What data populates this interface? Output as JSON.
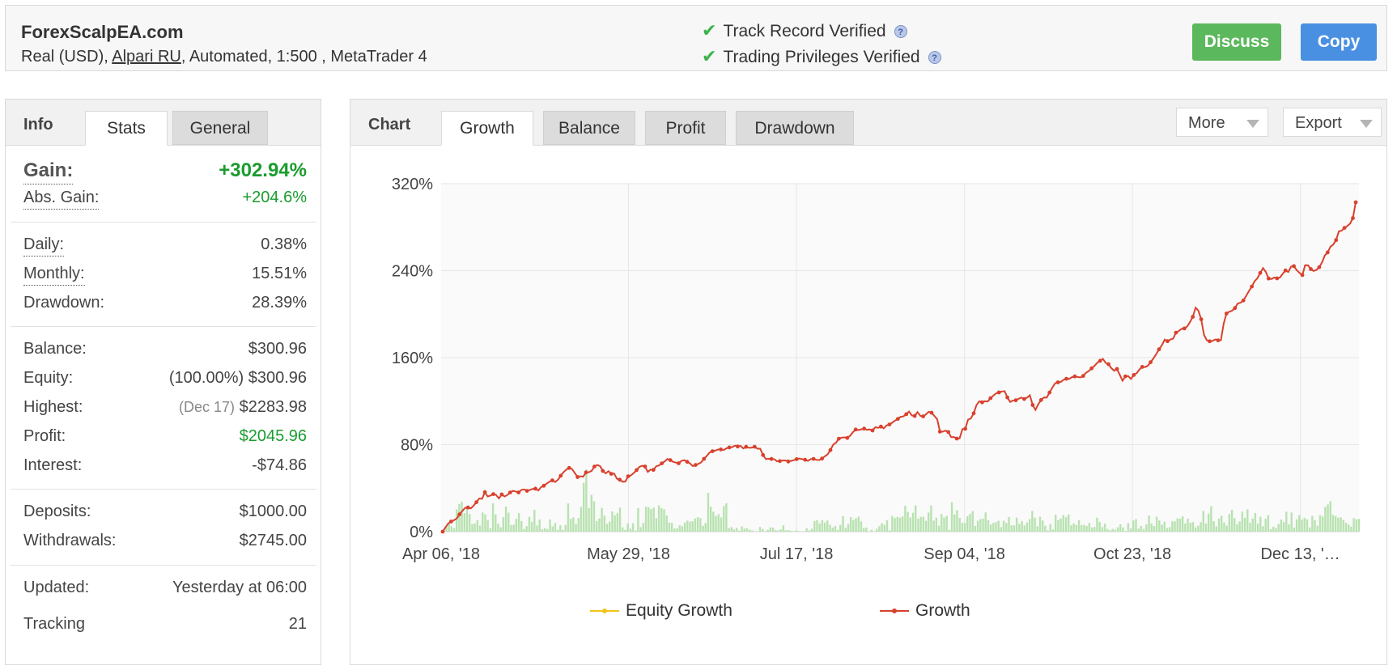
{
  "header": {
    "site_name": "ForexScalpEA.com",
    "account_prefix": "Real (USD), ",
    "broker": "Alpari RU",
    "account_suffix": ", Automated, 1:500 , MetaTrader 4",
    "track_record": "Track Record Verified",
    "trading_privileges": "Trading Privileges Verified",
    "discuss_label": "Discuss",
    "copy_label": "Copy",
    "check_icon": "✔",
    "help_icon": "?"
  },
  "info": {
    "title": "Info",
    "tabs": [
      "Stats",
      "General"
    ],
    "gain_label": "Gain:",
    "gain_value": "+302.94%",
    "abs_gain_label": "Abs. Gain:",
    "abs_gain_value": "+204.6%",
    "daily_label": "Daily:",
    "daily_value": "0.38%",
    "monthly_label": "Monthly:",
    "monthly_value": "15.51%",
    "drawdown_label": "Drawdown:",
    "drawdown_value": "28.39%",
    "balance_label": "Balance:",
    "balance_value": "$300.96",
    "equity_label": "Equity:",
    "equity_note": "(100.00%)",
    "equity_value": "$300.96",
    "highest_label": "Highest:",
    "highest_note": "(Dec 17)",
    "highest_value": "$2283.98",
    "profit_label": "Profit:",
    "profit_value": "$2045.96",
    "interest_label": "Interest:",
    "interest_value": "-$74.86",
    "deposits_label": "Deposits:",
    "deposits_value": "$1000.00",
    "withdrawals_label": "Withdrawals:",
    "withdrawals_value": "$2745.00",
    "updated_label": "Updated:",
    "updated_value": "Yesterday at 06:00",
    "tracking_label": "Tracking",
    "tracking_value": "21"
  },
  "chart_panel": {
    "title": "Chart",
    "tabs": [
      "Growth",
      "Balance",
      "Profit",
      "Drawdown"
    ],
    "more_label": "More",
    "export_label": "Export"
  },
  "colors": {
    "growth": "#d9412e",
    "equity": "#f0c419",
    "volume": "#b8e2b0",
    "gain_green": "#1a9c2e",
    "discuss": "#5cb85c",
    "copy": "#4a90e2"
  },
  "chart_data": {
    "type": "line",
    "x_tick_labels": [
      "Apr 06, '18",
      "May 29, '18",
      "Jul 17, '18",
      "Sep 04, '18",
      "Oct 23, '18",
      "Dec 13, '…"
    ],
    "y_tick_labels": [
      "0%",
      "80%",
      "160%",
      "240%",
      "320%"
    ],
    "ylim": [
      0,
      320
    ],
    "grid": true,
    "legend_position": "bottom",
    "series": [
      {
        "name": "Equity Growth",
        "values": []
      },
      {
        "name": "Growth",
        "values": [
          0.0,
          4.1,
          7.6,
          9.3,
          10.5,
          12.1,
          15.9,
          19.1,
          21.9,
          22.2,
          21.4,
          24.0,
          27.1,
          30.5,
          30.2,
          36.3,
          32.3,
          33.2,
          34.5,
          33.7,
          30.6,
          34.2,
          32.3,
          33.7,
          36.0,
          37.5,
          36.9,
          36.0,
          38.4,
          38.8,
          37.5,
          38.3,
          39.3,
          39.5,
          37.8,
          40.9,
          42.2,
          44.1,
          45.9,
          47.2,
          45.6,
          47.7,
          51.4,
          54.7,
          57.1,
          58.6,
          57.6,
          54.0,
          50.2,
          50.9,
          50.6,
          54.5,
          54.6,
          56.0,
          59.8,
          61.3,
          60.2,
          55.9,
          53.6,
          55.6,
          53.1,
          53.4,
          48.7,
          47.8,
          45.9,
          46.1,
          50.9,
          51.7,
          53.9,
          56.6,
          59.5,
          60.6,
          59.9,
          54.9,
          57.0,
          56.8,
          60.1,
          60.9,
          62.8,
          64.6,
          66.8,
          65.8,
          64.2,
          63.5,
          62.9,
          65.1,
          65.7,
          64.2,
          62.8,
          60.3,
          61.3,
          62.3,
          63.7,
          67.0,
          69.7,
          72.8,
          74.0,
          74.5,
          75.5,
          75.6,
          75.1,
          76.6,
          77.5,
          77.7,
          79.1,
          78.3,
          78.9,
          76.6,
          78.0,
          77.1,
          77.2,
          78.1,
          76.3,
          76.3,
          70.5,
          66.8,
          67.0,
          66.8,
          66.6,
          64.7,
          64.9,
          65.4,
          65.5,
          64.5,
          65.1,
          65.7,
          66.7,
          67.2,
          66.6,
          66.1,
          65.1,
          66.7,
          66.9,
          66.0,
          65.8,
          67.2,
          69.2,
          71.0,
          75.0,
          80.0,
          81.8,
          85.5,
          86.4,
          86.7,
          86.2,
          88.2,
          91.4,
          93.9,
          93.4,
          94.1,
          94.7,
          93.7,
          94.0,
          93.0,
          96.0,
          95.5,
          96.6,
          95.0,
          97.7,
          98.5,
          100.2,
          102.1,
          103.7,
          105.6,
          106.0,
          108.0,
          110.4,
          106.8,
          106.4,
          109.9,
          106.6,
          106.0,
          107.8,
          110.2,
          109.4,
          106.4,
          103.4,
          92.0,
          91.9,
          92.9,
          91.6,
          86.9,
          87.0,
          85.6,
          85.8,
          94.3,
          94.6,
          102.9,
          104.1,
          108.8,
          116.3,
          119.9,
          118.9,
          120.0,
          119.7,
          122.7,
          125.1,
          127.2,
          128.0,
          128.9,
          129.2,
          123.4,
          119.2,
          120.6,
          120.8,
          122.2,
          123.3,
          122.0,
          123.2,
          125.4,
          116.5,
          112.0,
          117.2,
          121.1,
          123.4,
          123.2,
          127.9,
          132.5,
          136.4,
          137.3,
          137.7,
          139.6,
          140.6,
          140.5,
          142.1,
          142.7,
          142.2,
          141.8,
          143.2,
          146.1,
          147.7,
          150.2,
          152.3,
          155.3,
          157.1,
          158.9,
          155.2,
          154.0,
          150.4,
          148.0,
          149.6,
          144.2,
          138.8,
          142.8,
          143.0,
          140.4,
          144.1,
          145.7,
          149.1,
          151.5,
          151.3,
          152.6,
          155.8,
          159.3,
          163.4,
          167.7,
          171.4,
          176.6,
          175.1,
          176.6,
          177.5,
          183.0,
          184.5,
          186.4,
          186.9,
          188.7,
          192.7,
          197.6,
          205.9,
          203.2,
          195.3,
          180.8,
          176.1,
          175.0,
          175.4,
          176.7,
          175.9,
          176.0,
          191.4,
          200.6,
          202.2,
          203.2,
          205.6,
          209.8,
          210.5,
          212.6,
          216.7,
          221.3,
          225.4,
          230.3,
          233.0,
          237.9,
          242.4,
          238.9,
          232.8,
          232.3,
          233.7,
          232.9,
          233.7,
          237.1,
          240.2,
          238.8,
          243.8,
          244.2,
          240.5,
          237.9,
          236.0,
          245.0,
          244.9,
          241.5,
          239.7,
          240.7,
          243.2,
          247.6,
          254.0,
          256.8,
          262.1,
          264.0,
          268.1,
          276.2,
          276.8,
          279.4,
          281.1,
          283.4,
          288.4,
          302.9
        ]
      }
    ],
    "volume_values": [
      0.0,
      2.0,
      4.5,
      8.4,
      5.0,
      3.2,
      20.4,
      25.4,
      27.4,
      17.1,
      22.0,
      16.2,
      7.0,
      7.5,
      10.6,
      5.5,
      17.6,
      15.9,
      10.7,
      3.1,
      26.1,
      15.9,
      7.2,
      4.0,
      13.3,
      23.1,
      17.4,
      6.1,
      6.4,
      11.7,
      17.0,
      9.7,
      2.5,
      5.0,
      13.5,
      9.1,
      20.0,
      5.6,
      11.2,
      2.2,
      3.2,
      2.4,
      11.2,
      4.7,
      7.9,
      1.8,
      5.8,
      1.6,
      6.2,
      25.9,
      11.8,
      13.1,
      7.1,
      12.6,
      22.8,
      44.8,
      57.3,
      21.7,
      33.8,
      28.0,
      9.6,
      12.2,
      21.8,
      14.7,
      7.2,
      9.2,
      18.6,
      14.9,
      16.9,
      22.0,
      3.9,
      1.7,
      7.5,
      2.8,
      7.7,
      1.1,
      21.7,
      4.2,
      8.0,
      22.9,
      22.5,
      20.7,
      22.2,
      12.3,
      24.1,
      21.5,
      20.6,
      14.9,
      8.3,
      8.1,
      2.9,
      3.1,
      5.9,
      4.9,
      8.3,
      10.1,
      9.2,
      9.6,
      12.1,
      13.3,
      12.4,
      5.4,
      8.0,
      35.7,
      23.0,
      18.4,
      14.4,
      16.0,
      13.1,
      23.4,
      26.0,
      3.2,
      4.2,
      2.1,
      3.4,
      1.0,
      4.9,
      2.8,
      3.2,
      1.9,
      1.1,
      0.0,
      0.0,
      4.3,
      2.4,
      0.4,
      1.8,
      3.9,
      3.7,
      1.4,
      1.2,
      2.1,
      5.8,
      1.3,
      1.5,
      0.7,
      0.3,
      1.2,
      0.5,
      0.2,
      0.0,
      3.0,
      1.2,
      2.7,
      9.6,
      10.6,
      7.4,
      10.4,
      8.4,
      10.2,
      6.4,
      3.7,
      5.3,
      1.6,
      6.3,
      14.3,
      3.3,
      6.9,
      13.4,
      10.8,
      12.2,
      13.8,
      9.4,
      3.2,
      3.8,
      0.3,
      1.7,
      0.0,
      2.6,
      5.0,
      7.8,
      6.3,
      10.4,
      1.2,
      14.4,
      12.6,
      13.6,
      12.9,
      14.0,
      23.8,
      18.2,
      13.0,
      17.3,
      24.1,
      11.8,
      13.6,
      13.7,
      10.0,
      17.6,
      24.0,
      10.1,
      12.9,
      5.5,
      16.1,
      13.0,
      14.6,
      1.7,
      27.1,
      15.8,
      19.7,
      12.7,
      8.0,
      7.9,
      14.1,
      16.3,
      18.8,
      5.3,
      10.0,
      11.6,
      12.0,
      17.7,
      10.5,
      6.6,
      8.0,
      8.7,
      10.0,
      4.2,
      10.0,
      7.9,
      13.4,
      5.8,
      5.8,
      12.9,
      7.1,
      9.7,
      5.7,
      8.4,
      11.5,
      19.0,
      12.8,
      4.9,
      13.8,
      10.3,
      5.4,
      1.2,
      6.9,
      2.0,
      15.5,
      10.6,
      12.1,
      15.2,
      13.3,
      15.8,
      5.9,
      7.5,
      6.1,
      10.4,
      6.0,
      6.2,
      5.1,
      7.9,
      3.8,
      4.3,
      12.9,
      9.0,
      4.2,
      7.3,
      2.5,
      1.3,
      2.5,
      2.0,
      4.0,
      6.7,
      3.8,
      0.7,
      7.9,
      2.9,
      10.2,
      11.5,
      2.8,
      5.3,
      2.5,
      6.7,
      14.8,
      7.5,
      5.2,
      13.7,
      10.3,
      6.4,
      9.2,
      3.3,
      4.1,
      9.5,
      9.4,
      12.2,
      12.0,
      14.1,
      7.4,
      11.9,
      8.2,
      8.8,
      3.9,
      5.6,
      8.7,
      19.0,
      7.4,
      16.6,
      23.4,
      9.6,
      4.9,
      12.0,
      14.6,
      8.4,
      5.6,
      16.1,
      20.0,
      12.5,
      6.9,
      9.4,
      18.4,
      12.8,
      20.5,
      8.2,
      12.1,
      17.1,
      7.5,
      13.7,
      5.0,
      11.7,
      15.1,
      2.3,
      4.5,
      3.2,
      6.9,
      11.1,
      8.8,
      18.3,
      6.7,
      17.5,
      3.7,
      11.3,
      15.2,
      11.0,
      12.7,
      11.3,
      3.9,
      14.4,
      10.6,
      5.4,
      15.1,
      13.9,
      22.7,
      25.0,
      28.0,
      15.4,
      14.3,
      12.9,
      13.1,
      10.8,
      8.1,
      6.5,
      4.6,
      12.4,
      11.3,
      11.7
    ]
  }
}
